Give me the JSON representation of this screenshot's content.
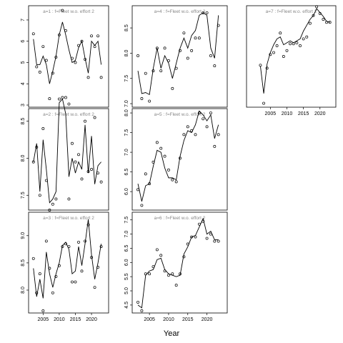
{
  "xlabel": "Year",
  "chart_data": [
    {
      "type": "line",
      "title": "a=1  :  f=Fleet w.o. effort 2",
      "x": [
        2002,
        2003,
        2004,
        2005,
        2006,
        2007,
        2008,
        2009,
        2010,
        2011,
        2012,
        2013,
        2014,
        2015,
        2016,
        2017,
        2018,
        2019,
        2020,
        2021,
        2022,
        2023
      ],
      "series": [
        {
          "style": "points",
          "color": "#000000",
          "values": [
            6.35,
            4.8,
            4.55,
            5.75,
            5.1,
            3.3,
            4.5,
            5.25,
            6.3,
            7.45,
            6.5,
            3.05,
            5.2,
            5.0,
            5.8,
            6.0,
            5.15,
            4.3,
            6.25,
            5.75,
            6.25,
            4.3
          ]
        },
        {
          "style": "line",
          "color": "#000000",
          "values": [
            6.1,
            4.9,
            4.9,
            5.3,
            4.9,
            4.0,
            4.6,
            5.3,
            6.3,
            6.9,
            6.3,
            5.6,
            5.0,
            5.1,
            5.7,
            6.0,
            5.2,
            4.5,
            6.0,
            5.8,
            6.0,
            4.9
          ]
        }
      ],
      "xlim": [
        2000.5,
        2025.3
      ],
      "ylim": [
        2.9,
        7.67
      ],
      "yticks": [
        3,
        4,
        5,
        6,
        7
      ]
    },
    {
      "type": "line",
      "title": "a=2  :  f=Fleet w.o. effort 2",
      "x": [
        2002,
        2003,
        2004,
        2005,
        2006,
        2007,
        2008,
        2009,
        2010,
        2011,
        2012,
        2013,
        2014,
        2015,
        2016,
        2017,
        2018,
        2019,
        2020,
        2021,
        2022,
        2023
      ],
      "series": [
        {
          "style": "points",
          "color": "#000000",
          "values": [
            7.95,
            8.15,
            7.5,
            8.4,
            7.7,
            7.3,
            7.38,
            7.45,
            8.8,
            8.82,
            8.82,
            7.45,
            8.2,
            7.95,
            8.05,
            7.72,
            8.5,
            7.82,
            7.85,
            8.55,
            7.8,
            7.68
          ]
        },
        {
          "style": "line",
          "color": "#000000",
          "values": [
            7.95,
            8.2,
            7.55,
            8.25,
            7.85,
            7.4,
            7.45,
            7.55,
            8.75,
            8.8,
            8.6,
            7.75,
            8.0,
            7.8,
            7.95,
            7.85,
            8.45,
            7.8,
            8.3,
            7.65,
            7.9,
            7.95
          ]
        }
      ],
      "xlim": [
        2000.5,
        2025.3
      ],
      "ylim": [
        7.3,
        8.67
      ],
      "yticks": [
        {
          "value": 7.5,
          "label": "7.5"
        },
        {
          "value": 8,
          "label": "8.0"
        },
        {
          "value": 8.5,
          "label": "8.5"
        }
      ]
    },
    {
      "type": "line",
      "title": "a=3  :  f=Fleet w.o. effort 2",
      "x": [
        2002,
        2003,
        2004,
        2005,
        2006,
        2007,
        2008,
        2009,
        2010,
        2011,
        2012,
        2013,
        2014,
        2015,
        2016,
        2017,
        2018,
        2019,
        2020,
        2021,
        2022,
        2023
      ],
      "series": [
        {
          "style": "points",
          "color": "#000000",
          "values": [
            8.58,
            7.95,
            8.3,
            7.62,
            8.9,
            8.4,
            7.95,
            8.25,
            8.45,
            8.8,
            8.85,
            8.8,
            8.15,
            8.15,
            8.88,
            8.35,
            8.9,
            9.2,
            8.6,
            8.05,
            8.42,
            8.8
          ]
        },
        {
          "style": "line",
          "color": "#000000",
          "values": [
            8.4,
            7.88,
            8.2,
            7.85,
            8.7,
            8.3,
            8.05,
            8.3,
            8.5,
            8.82,
            8.88,
            8.75,
            8.3,
            8.35,
            8.8,
            8.45,
            8.85,
            9.3,
            8.65,
            8.2,
            8.5,
            8.85
          ]
        }
      ],
      "xlim": [
        2000.5,
        2025.3
      ],
      "ylim": [
        7.58,
        9.43
      ],
      "yticks": [
        {
          "value": 8,
          "label": "8.0"
        },
        {
          "value": 8.5,
          "label": "8.5"
        },
        {
          "value": 9,
          "label": "9.0"
        }
      ],
      "xticks": [
        2005,
        2010,
        2015,
        2020
      ]
    },
    {
      "type": "line",
      "title": "a=4  :  f=Fleet w.o. effort 2",
      "x": [
        2002,
        2003,
        2004,
        2005,
        2006,
        2007,
        2008,
        2009,
        2010,
        2011,
        2012,
        2013,
        2014,
        2015,
        2016,
        2017,
        2018,
        2019,
        2020,
        2021,
        2022,
        2023
      ],
      "series": [
        {
          "style": "points",
          "color": "#000000",
          "values": [
            7.95,
            7.1,
            7.6,
            7.05,
            7.65,
            8.1,
            7.65,
            8.1,
            7.85,
            7.3,
            7.7,
            8.05,
            8.4,
            7.9,
            8.05,
            8.3,
            8.3,
            8.8,
            8.8,
            7.95,
            7.75,
            8.55
          ]
        },
        {
          "style": "line",
          "color": "#000000",
          "values": [
            7.65,
            7.2,
            7.22,
            7.18,
            7.7,
            8.1,
            7.7,
            7.95,
            7.8,
            7.5,
            7.8,
            8.1,
            8.3,
            8.1,
            8.35,
            8.45,
            8.75,
            8.8,
            8.75,
            8.1,
            7.9,
            8.75
          ]
        }
      ],
      "xlim": [
        2000.5,
        2025.3
      ],
      "ylim": [
        6.93,
        8.94
      ],
      "yticks": [
        {
          "value": 7,
          "label": "7.0"
        },
        {
          "value": 7.5,
          "label": "7.5"
        },
        {
          "value": 8,
          "label": "8.0"
        },
        {
          "value": 8.5,
          "label": "8.5"
        }
      ]
    },
    {
      "type": "line",
      "title": "a=5  :  f=Fleet w.o. effort 2",
      "x": [
        2002,
        2003,
        2004,
        2005,
        2006,
        2007,
        2008,
        2009,
        2010,
        2011,
        2012,
        2013,
        2014,
        2015,
        2016,
        2017,
        2018,
        2019,
        2020,
        2021,
        2022,
        2023
      ],
      "series": [
        {
          "style": "points",
          "color": "#000000",
          "values": [
            6.05,
            5.65,
            6.45,
            6.2,
            6.75,
            7.25,
            7.1,
            6.9,
            6.55,
            6.3,
            6.25,
            6.85,
            7.45,
            7.65,
            7.55,
            7.45,
            8.0,
            7.85,
            7.65,
            8.0,
            7.15,
            7.45
          ]
        },
        {
          "style": "line",
          "color": "#000000",
          "values": [
            6.2,
            5.75,
            6.15,
            6.2,
            6.65,
            7.05,
            7.0,
            6.6,
            6.35,
            6.35,
            6.3,
            6.9,
            7.3,
            7.55,
            7.5,
            7.7,
            8.05,
            7.95,
            7.8,
            7.95,
            7.35,
            7.7
          ]
        }
      ],
      "xlim": [
        2000.5,
        2025.3
      ],
      "ylim": [
        5.53,
        8.11
      ],
      "yticks": [
        {
          "value": 6,
          "label": "6.0"
        },
        {
          "value": 6.5,
          "label": "6.5"
        },
        {
          "value": 7,
          "label": "7.0"
        },
        {
          "value": 7.5,
          "label": "7.5"
        },
        {
          "value": 8,
          "label": "8.0"
        }
      ]
    },
    {
      "type": "line",
      "title": "a=6  :  f=Fleet w.o. effort 2",
      "x": [
        2002,
        2003,
        2004,
        2005,
        2006,
        2007,
        2008,
        2009,
        2010,
        2011,
        2012,
        2013,
        2014,
        2015,
        2016,
        2017,
        2018,
        2019,
        2020,
        2021,
        2022,
        2023
      ],
      "series": [
        {
          "style": "points",
          "color": "#000000",
          "values": [
            4.6,
            4.3,
            5.6,
            5.6,
            5.85,
            6.45,
            6.25,
            5.7,
            5.55,
            5.6,
            5.2,
            5.6,
            6.2,
            6.65,
            6.9,
            6.9,
            7.35,
            7.45,
            6.85,
            7.0,
            6.75,
            6.75
          ]
        },
        {
          "style": "line",
          "color": "#000000",
          "values": [
            4.5,
            4.4,
            5.55,
            5.7,
            5.75,
            6.1,
            6.15,
            5.75,
            5.6,
            5.55,
            5.5,
            5.55,
            6.3,
            6.55,
            6.9,
            6.95,
            7.25,
            7.55,
            7.0,
            7.1,
            6.8,
            6.8
          ]
        }
      ],
      "xlim": [
        2000.5,
        2025.3
      ],
      "ylim": [
        4.22,
        7.77
      ],
      "yticks": [
        4.5,
        {
          "value": 5,
          "label": "5.0"
        },
        5.5,
        {
          "value": 6,
          "label": "6.0"
        },
        6.5,
        {
          "value": 7,
          "label": "7.0"
        },
        7.5
      ],
      "xticks": [
        2005,
        2010,
        2015,
        2020
      ]
    },
    {
      "type": "line",
      "title": "a=7  :  f=Fleet w.o. effort 2",
      "x": [
        2002,
        2003,
        2004,
        2005,
        2006,
        2007,
        2008,
        2009,
        2010,
        2011,
        2012,
        2013,
        2014,
        2015,
        2016,
        2017,
        2018,
        2019,
        2020,
        2021,
        2022,
        2023
      ],
      "series": [
        {
          "style": "points",
          "color": "#000000",
          "values": [
            4.55,
            2.6,
            4.4,
            5.1,
            5.2,
            5.55,
            6.2,
            5.0,
            5.3,
            5.65,
            5.65,
            5.7,
            5.55,
            5.9,
            6.0,
            6.7,
            7.1,
            7.55,
            7.2,
            6.9,
            6.75,
            6.75
          ]
        },
        {
          "style": "line",
          "color": "#000000",
          "values": [
            4.5,
            3.1,
            4.6,
            5.2,
            5.6,
            5.9,
            6.0,
            5.6,
            5.7,
            5.8,
            5.7,
            5.8,
            5.9,
            6.3,
            6.6,
            6.9,
            7.1,
            7.45,
            7.25,
            7.05,
            6.8,
            6.75
          ]
        }
      ],
      "xlim": [
        1997.8,
        2024.8
      ],
      "ylim": [
        2.4,
        7.6
      ],
      "xticks": [
        2005,
        2010,
        2015,
        2020
      ]
    }
  ]
}
